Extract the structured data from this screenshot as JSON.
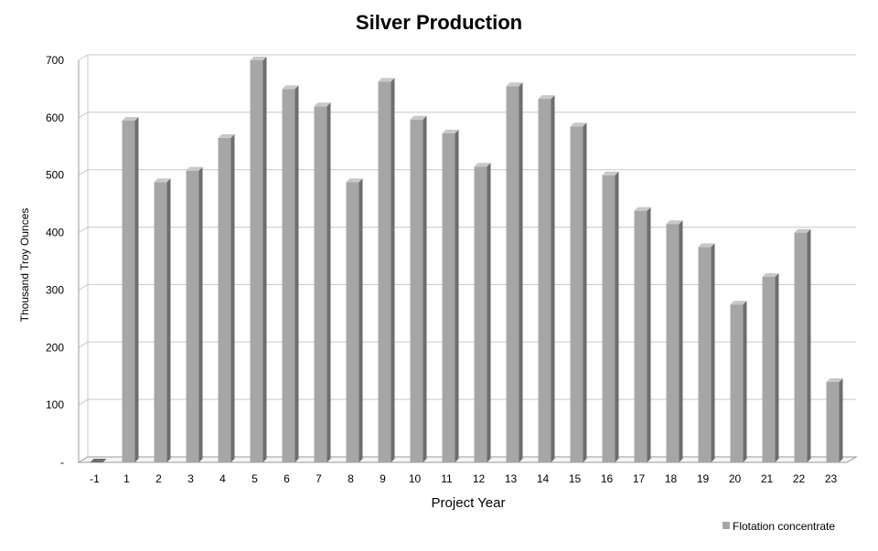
{
  "chart_data": {
    "type": "bar",
    "title": "Silver Production",
    "xlabel": "Project Year",
    "ylabel": "Thousand  Troy Ounces",
    "categories": [
      "-1",
      "1",
      "2",
      "3",
      "4",
      "5",
      "6",
      "7",
      "8",
      "9",
      "10",
      "11",
      "12",
      "13",
      "14",
      "15",
      "16",
      "17",
      "18",
      "19",
      "20",
      "21",
      "22",
      "23"
    ],
    "series": [
      {
        "name": "Flotation concentrate",
        "values": [
          0,
          595,
          488,
          508,
          565,
          700,
          650,
          620,
          488,
          663,
          597,
          573,
          515,
          655,
          633,
          585,
          500,
          438,
          415,
          375,
          275,
          323,
          400,
          140
        ]
      }
    ],
    "ylim": [
      0,
      700
    ],
    "yticks": [
      0,
      100,
      200,
      300,
      400,
      500,
      600,
      700
    ],
    "ytick_labels": [
      "-",
      "100",
      "200",
      "300",
      "400",
      "500",
      "600",
      "700"
    ],
    "grid": true,
    "legend_position": "bottom-right",
    "colors": {
      "bar_front": "#a6a6a6",
      "bar_side": "#6e6e6e",
      "bar_top": "#c8c8c8",
      "grid": "#c8c8c8",
      "axis": "#9a9a9a"
    }
  }
}
